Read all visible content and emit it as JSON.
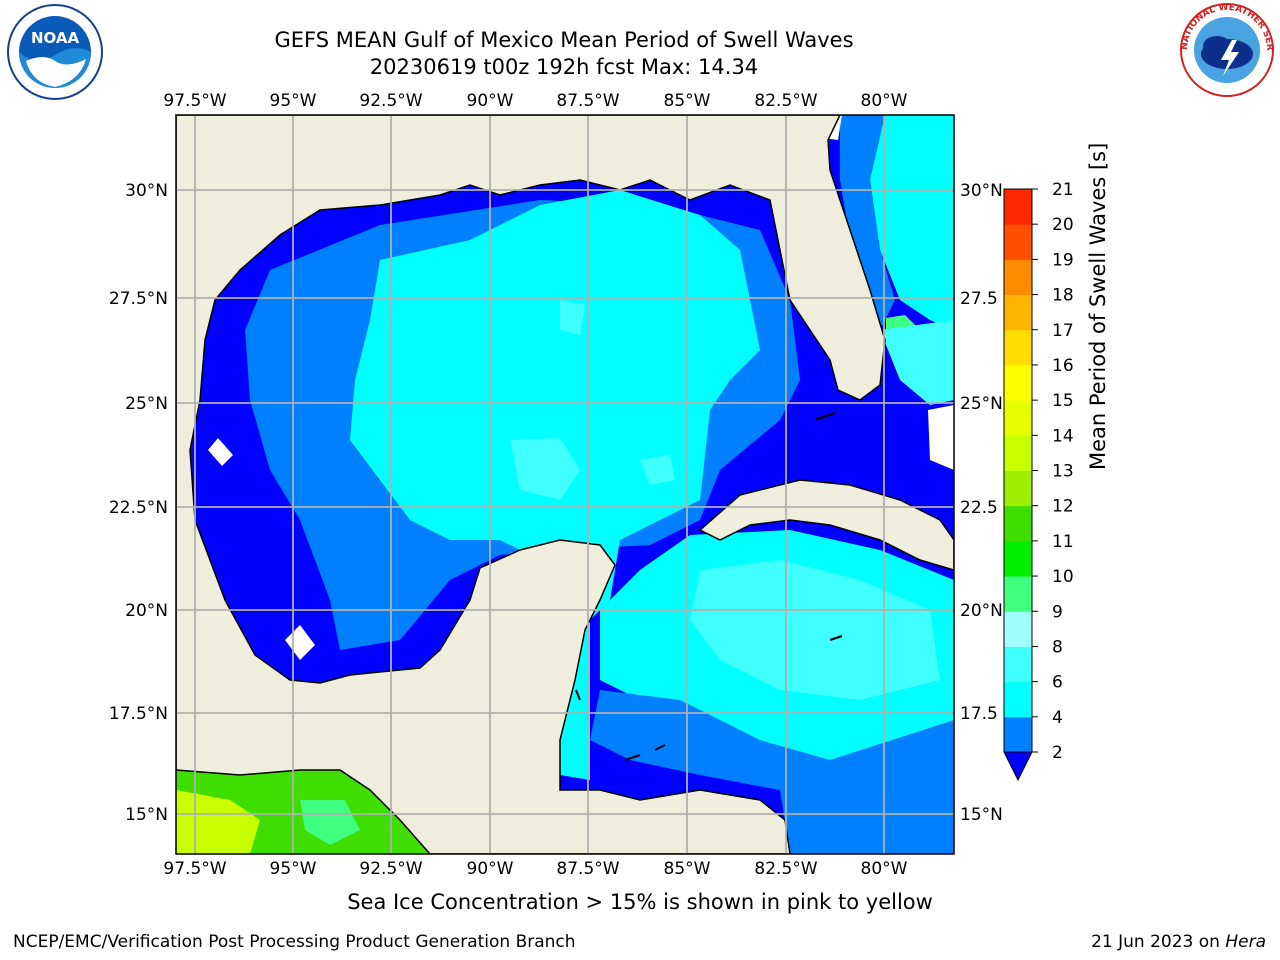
{
  "title": {
    "line1": "GEFS MEAN Gulf of Mexico Mean Period of Swell Waves",
    "line2": "20230619 t00z 192h fcst   Max: 14.34"
  },
  "logos": {
    "left": {
      "text": "NOAA",
      "icon": "noaa-logo-icon"
    },
    "right": {
      "text": "NATIONAL WEATHER SERVICE",
      "icon": "nws-logo-icon"
    }
  },
  "map": {
    "lon_ticks": [
      "97.5°W",
      "95°W",
      "92.5°W",
      "90°W",
      "87.5°W",
      "85°W",
      "82.5°W",
      "80°W"
    ],
    "lat_ticks": [
      "30°N",
      "27.5°N",
      "25°N",
      "22.5°N",
      "20°N",
      "17.5°N",
      "15°N"
    ],
    "lat_ticks_right": [
      "30°N",
      "27.5",
      "25°N",
      "22.5",
      "20°N",
      "17.5",
      "15°N"
    ],
    "extent": {
      "lon": [
        -98,
        -79.5
      ],
      "lat": [
        14,
        31.6
      ]
    }
  },
  "colorbar": {
    "label": "Mean Period of Swell Waves [s]",
    "ticks": [
      "2",
      "4",
      "6",
      "8",
      "9",
      "10",
      "11",
      "12",
      "13",
      "14",
      "15",
      "16",
      "17",
      "18",
      "19",
      "20",
      "21"
    ],
    "colors": [
      "#0000ff",
      "#0080ff",
      "#00ffff",
      "#40ffff",
      "#a0ffff",
      "#40ff80",
      "#00ee00",
      "#40dd00",
      "#a0ee00",
      "#c8ff00",
      "#e6ff00",
      "#ffff00",
      "#ffdd00",
      "#ffb400",
      "#ff8c00",
      "#ff5000",
      "#ff2800",
      "#ff0000"
    ],
    "extend": "min"
  },
  "footer": {
    "note": "Sea Ice Concentration > 15% is shown in pink to yellow",
    "credit_left": "NCEP/EMC/Verification Post Processing Product Generation Branch",
    "credit_date": "21 Jun 2023 on ",
    "credit_host": "Hera"
  },
  "colors": {
    "land": "#efeedd",
    "grid": "#b0b0b0"
  }
}
